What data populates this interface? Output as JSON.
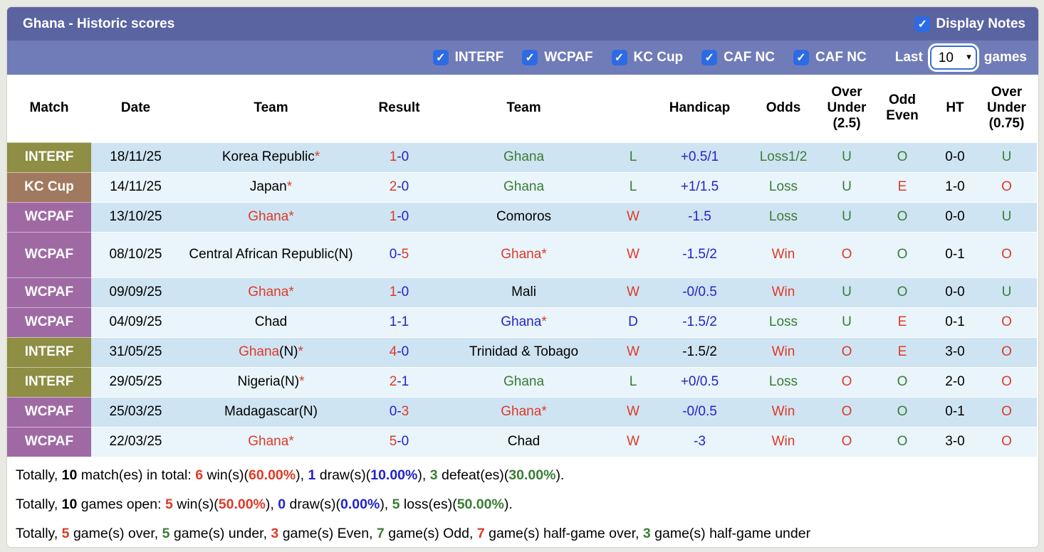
{
  "palette": {
    "red": "#dd3a27",
    "green": "#3a7d35",
    "blue": "#2324c9",
    "black": "#000000"
  },
  "league_colors": {
    "INTERF": "#8e8e44",
    "KC Cup": "#a1795e",
    "WCPAF": "#9f6aa4"
  },
  "title_bar": {
    "title": "Ghana - Historic scores",
    "display_notes_label": "Display Notes",
    "display_notes_checked": true,
    "check_glyph": "✓"
  },
  "filter_bar": {
    "checkboxes": [
      {
        "label": "INTERF",
        "checked": true
      },
      {
        "label": "WCPAF",
        "checked": true
      },
      {
        "label": "KC Cup",
        "checked": true
      },
      {
        "label": "CAF NC",
        "checked": true
      },
      {
        "label": "CAF NC",
        "checked": true
      }
    ],
    "last_label": "Last",
    "games_count": "10",
    "games_label": "games"
  },
  "table": {
    "headers": [
      [
        "Match"
      ],
      [
        "Date"
      ],
      [
        "Team"
      ],
      [
        "Result"
      ],
      [
        "Team"
      ],
      [
        ""
      ],
      [
        "Handicap"
      ],
      [
        "Odds"
      ],
      [
        "Over",
        "Under",
        "(2.5)"
      ],
      [
        "Odd",
        "Even"
      ],
      [
        "HT"
      ],
      [
        "Over",
        "Under",
        "(0.75)"
      ]
    ],
    "rows": [
      {
        "league": "INTERF",
        "date": "18/11/25",
        "home": [
          {
            "t": "Korea Republic",
            "c": "black"
          },
          {
            "t": "*",
            "c": "red"
          }
        ],
        "result": [
          {
            "t": "1",
            "c": "red"
          },
          {
            "t": "-",
            "c": "blue"
          },
          {
            "t": "0",
            "c": "blue"
          }
        ],
        "away": [
          {
            "t": "Ghana",
            "c": "green"
          }
        ],
        "wld": {
          "t": "L",
          "c": "green"
        },
        "handicap": {
          "t": "+0.5/1",
          "c": "blue"
        },
        "odds": {
          "t": "Loss1/2",
          "c": "green"
        },
        "ou25": {
          "t": "U",
          "c": "green"
        },
        "oddeven": {
          "t": "O",
          "c": "green"
        },
        "ht": {
          "t": "0-0",
          "c": "black"
        },
        "ou075": {
          "t": "U",
          "c": "green"
        }
      },
      {
        "league": "KC Cup",
        "date": "14/11/25",
        "home": [
          {
            "t": "Japan",
            "c": "black"
          },
          {
            "t": "*",
            "c": "red"
          }
        ],
        "result": [
          {
            "t": "2",
            "c": "red"
          },
          {
            "t": "-",
            "c": "blue"
          },
          {
            "t": "0",
            "c": "blue"
          }
        ],
        "away": [
          {
            "t": "Ghana",
            "c": "green"
          }
        ],
        "wld": {
          "t": "L",
          "c": "green"
        },
        "handicap": {
          "t": "+1/1.5",
          "c": "blue"
        },
        "odds": {
          "t": "Loss",
          "c": "green"
        },
        "ou25": {
          "t": "U",
          "c": "green"
        },
        "oddeven": {
          "t": "E",
          "c": "red"
        },
        "ht": {
          "t": "1-0",
          "c": "black"
        },
        "ou075": {
          "t": "O",
          "c": "red"
        }
      },
      {
        "league": "WCPAF",
        "date": "13/10/25",
        "home": [
          {
            "t": "Ghana",
            "c": "red"
          },
          {
            "t": "*",
            "c": "red"
          }
        ],
        "result": [
          {
            "t": "1",
            "c": "red"
          },
          {
            "t": "-",
            "c": "blue"
          },
          {
            "t": "0",
            "c": "blue"
          }
        ],
        "away": [
          {
            "t": "Comoros",
            "c": "black"
          }
        ],
        "wld": {
          "t": "W",
          "c": "red"
        },
        "handicap": {
          "t": "-1.5",
          "c": "blue"
        },
        "odds": {
          "t": "Loss",
          "c": "green"
        },
        "ou25": {
          "t": "U",
          "c": "green"
        },
        "oddeven": {
          "t": "O",
          "c": "green"
        },
        "ht": {
          "t": "0-0",
          "c": "black"
        },
        "ou075": {
          "t": "U",
          "c": "green"
        }
      },
      {
        "league": "WCPAF",
        "date": "08/10/25",
        "home": [
          {
            "t": "Central African Republic(N)",
            "c": "black"
          }
        ],
        "result": [
          {
            "t": "0",
            "c": "blue"
          },
          {
            "t": "-",
            "c": "blue"
          },
          {
            "t": "5",
            "c": "red"
          }
        ],
        "away": [
          {
            "t": "Ghana",
            "c": "red"
          },
          {
            "t": "*",
            "c": "red"
          }
        ],
        "wld": {
          "t": "W",
          "c": "red"
        },
        "handicap": {
          "t": "-1.5/2",
          "c": "blue"
        },
        "odds": {
          "t": "Win",
          "c": "red"
        },
        "ou25": {
          "t": "O",
          "c": "red"
        },
        "oddeven": {
          "t": "O",
          "c": "green"
        },
        "ht": {
          "t": "0-1",
          "c": "black"
        },
        "ou075": {
          "t": "O",
          "c": "red"
        },
        "tall": true
      },
      {
        "league": "WCPAF",
        "date": "09/09/25",
        "home": [
          {
            "t": "Ghana",
            "c": "red"
          },
          {
            "t": "*",
            "c": "red"
          }
        ],
        "result": [
          {
            "t": "1",
            "c": "red"
          },
          {
            "t": "-",
            "c": "blue"
          },
          {
            "t": "0",
            "c": "blue"
          }
        ],
        "away": [
          {
            "t": "Mali",
            "c": "black"
          }
        ],
        "wld": {
          "t": "W",
          "c": "red"
        },
        "handicap": {
          "t": "-0/0.5",
          "c": "blue"
        },
        "odds": {
          "t": "Win",
          "c": "red"
        },
        "ou25": {
          "t": "U",
          "c": "green"
        },
        "oddeven": {
          "t": "O",
          "c": "green"
        },
        "ht": {
          "t": "0-0",
          "c": "black"
        },
        "ou075": {
          "t": "U",
          "c": "green"
        }
      },
      {
        "league": "WCPAF",
        "date": "04/09/25",
        "home": [
          {
            "t": "Chad",
            "c": "black"
          }
        ],
        "result": [
          {
            "t": "1",
            "c": "blue"
          },
          {
            "t": "-",
            "c": "blue"
          },
          {
            "t": "1",
            "c": "blue"
          }
        ],
        "away": [
          {
            "t": "Ghana",
            "c": "blue"
          },
          {
            "t": "*",
            "c": "red"
          }
        ],
        "wld": {
          "t": "D",
          "c": "blue"
        },
        "handicap": {
          "t": "-1.5/2",
          "c": "blue"
        },
        "odds": {
          "t": "Loss",
          "c": "green"
        },
        "ou25": {
          "t": "U",
          "c": "green"
        },
        "oddeven": {
          "t": "E",
          "c": "red"
        },
        "ht": {
          "t": "0-1",
          "c": "black"
        },
        "ou075": {
          "t": "O",
          "c": "red"
        }
      },
      {
        "league": "INTERF",
        "date": "31/05/25",
        "home": [
          {
            "t": "Ghana",
            "c": "red"
          },
          {
            "t": "(N)",
            "c": "black"
          },
          {
            "t": "*",
            "c": "red"
          }
        ],
        "result": [
          {
            "t": "4",
            "c": "red"
          },
          {
            "t": "-",
            "c": "blue"
          },
          {
            "t": "0",
            "c": "blue"
          }
        ],
        "away": [
          {
            "t": "Trinidad & Tobago",
            "c": "black"
          }
        ],
        "wld": {
          "t": "W",
          "c": "red"
        },
        "handicap": {
          "t": "-1.5/2",
          "c": "black"
        },
        "odds": {
          "t": "Win",
          "c": "red"
        },
        "ou25": {
          "t": "O",
          "c": "red"
        },
        "oddeven": {
          "t": "E",
          "c": "red"
        },
        "ht": {
          "t": "3-0",
          "c": "black"
        },
        "ou075": {
          "t": "O",
          "c": "red"
        }
      },
      {
        "league": "INTERF",
        "date": "29/05/25",
        "home": [
          {
            "t": "Nigeria(N)",
            "c": "black"
          },
          {
            "t": "*",
            "c": "red"
          }
        ],
        "result": [
          {
            "t": "2",
            "c": "red"
          },
          {
            "t": "-",
            "c": "blue"
          },
          {
            "t": "1",
            "c": "blue"
          }
        ],
        "away": [
          {
            "t": "Ghana",
            "c": "green"
          }
        ],
        "wld": {
          "t": "L",
          "c": "green"
        },
        "handicap": {
          "t": "+0/0.5",
          "c": "blue"
        },
        "odds": {
          "t": "Loss",
          "c": "green"
        },
        "ou25": {
          "t": "O",
          "c": "red"
        },
        "oddeven": {
          "t": "O",
          "c": "green"
        },
        "ht": {
          "t": "2-0",
          "c": "black"
        },
        "ou075": {
          "t": "O",
          "c": "red"
        }
      },
      {
        "league": "WCPAF",
        "date": "25/03/25",
        "home": [
          {
            "t": "Madagascar(N)",
            "c": "black"
          }
        ],
        "result": [
          {
            "t": "0",
            "c": "blue"
          },
          {
            "t": "-",
            "c": "blue"
          },
          {
            "t": "3",
            "c": "red"
          }
        ],
        "away": [
          {
            "t": "Ghana",
            "c": "red"
          },
          {
            "t": "*",
            "c": "red"
          }
        ],
        "wld": {
          "t": "W",
          "c": "red"
        },
        "handicap": {
          "t": "-0/0.5",
          "c": "blue"
        },
        "odds": {
          "t": "Win",
          "c": "red"
        },
        "ou25": {
          "t": "O",
          "c": "red"
        },
        "oddeven": {
          "t": "O",
          "c": "green"
        },
        "ht": {
          "t": "0-1",
          "c": "black"
        },
        "ou075": {
          "t": "O",
          "c": "red"
        }
      },
      {
        "league": "WCPAF",
        "date": "22/03/25",
        "home": [
          {
            "t": "Ghana",
            "c": "red"
          },
          {
            "t": "*",
            "c": "red"
          }
        ],
        "result": [
          {
            "t": "5",
            "c": "red"
          },
          {
            "t": "-",
            "c": "blue"
          },
          {
            "t": "0",
            "c": "blue"
          }
        ],
        "away": [
          {
            "t": "Chad",
            "c": "black"
          }
        ],
        "wld": {
          "t": "W",
          "c": "red"
        },
        "handicap": {
          "t": "-3",
          "c": "blue"
        },
        "odds": {
          "t": "Win",
          "c": "red"
        },
        "ou25": {
          "t": "O",
          "c": "red"
        },
        "oddeven": {
          "t": "O",
          "c": "green"
        },
        "ht": {
          "t": "3-0",
          "c": "black"
        },
        "ou075": {
          "t": "O",
          "c": "red"
        }
      }
    ]
  },
  "summary": {
    "lines": [
      [
        {
          "t": "Totally, "
        },
        {
          "t": "10",
          "b": true
        },
        {
          "t": " match(es) in total: "
        },
        {
          "t": "6",
          "b": true,
          "c": "red"
        },
        {
          "t": " win(s)("
        },
        {
          "t": "60.00%",
          "b": true,
          "c": "red"
        },
        {
          "t": "), "
        },
        {
          "t": "1",
          "b": true,
          "c": "blue"
        },
        {
          "t": " draw(s)("
        },
        {
          "t": "10.00%",
          "b": true,
          "c": "blue"
        },
        {
          "t": "), "
        },
        {
          "t": "3",
          "b": true,
          "c": "green"
        },
        {
          "t": " defeat(es)("
        },
        {
          "t": "30.00%",
          "b": true,
          "c": "green"
        },
        {
          "t": ")."
        }
      ],
      [
        {
          "t": "Totally, "
        },
        {
          "t": "10",
          "b": true
        },
        {
          "t": " games open: "
        },
        {
          "t": "5",
          "b": true,
          "c": "red"
        },
        {
          "t": " win(s)("
        },
        {
          "t": "50.00%",
          "b": true,
          "c": "red"
        },
        {
          "t": "), "
        },
        {
          "t": "0",
          "b": true,
          "c": "blue"
        },
        {
          "t": " draw(s)("
        },
        {
          "t": "0.00%",
          "b": true,
          "c": "blue"
        },
        {
          "t": "), "
        },
        {
          "t": "5",
          "b": true,
          "c": "green"
        },
        {
          "t": " loss(es)("
        },
        {
          "t": "50.00%",
          "b": true,
          "c": "green"
        },
        {
          "t": ")."
        }
      ],
      [
        {
          "t": "Totally, "
        },
        {
          "t": "5",
          "b": true,
          "c": "red"
        },
        {
          "t": " game(s) over, "
        },
        {
          "t": "5",
          "b": true,
          "c": "green"
        },
        {
          "t": " game(s) under, "
        },
        {
          "t": "3",
          "b": true,
          "c": "red"
        },
        {
          "t": " game(s) Even, "
        },
        {
          "t": "7",
          "b": true,
          "c": "green"
        },
        {
          "t": " game(s) Odd, "
        },
        {
          "t": "7",
          "b": true,
          "c": "red"
        },
        {
          "t": " game(s) half-game over, "
        },
        {
          "t": "3",
          "b": true,
          "c": "green"
        },
        {
          "t": " game(s) half-game under"
        }
      ]
    ]
  }
}
